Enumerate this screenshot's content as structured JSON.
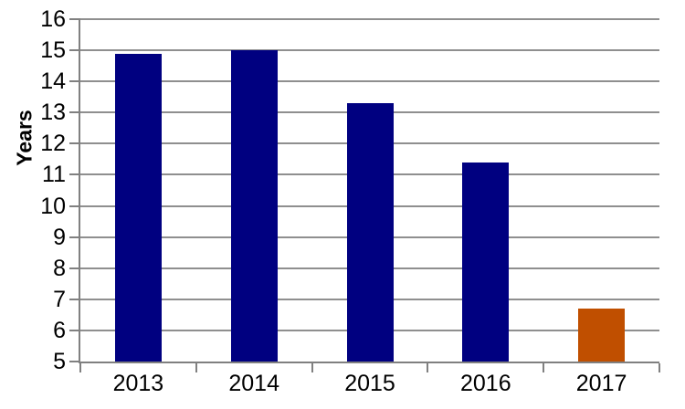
{
  "chart_data": {
    "type": "bar",
    "title": "",
    "xlabel": "",
    "ylabel": "Years",
    "categories": [
      "2013",
      "2014",
      "2015",
      "2016",
      "2017"
    ],
    "values": [
      14.9,
      15.0,
      13.3,
      11.4,
      6.7
    ],
    "bar_colors": [
      "#000080",
      "#000080",
      "#000080",
      "#000080",
      "#C04F00"
    ],
    "ylim": [
      5,
      16
    ],
    "ytick_step": 1,
    "ytick_labels": [
      "5",
      "6",
      "7",
      "8",
      "9",
      "10",
      "11",
      "12",
      "13",
      "14",
      "15",
      "16"
    ],
    "grid": true,
    "legend_position": "none"
  },
  "colors": {
    "bar_default": "#000080",
    "bar_highlight": "#C04F00",
    "gridline": "#8f8f8f",
    "axis": "#808080",
    "text": "#000000",
    "background": "#ffffff"
  }
}
